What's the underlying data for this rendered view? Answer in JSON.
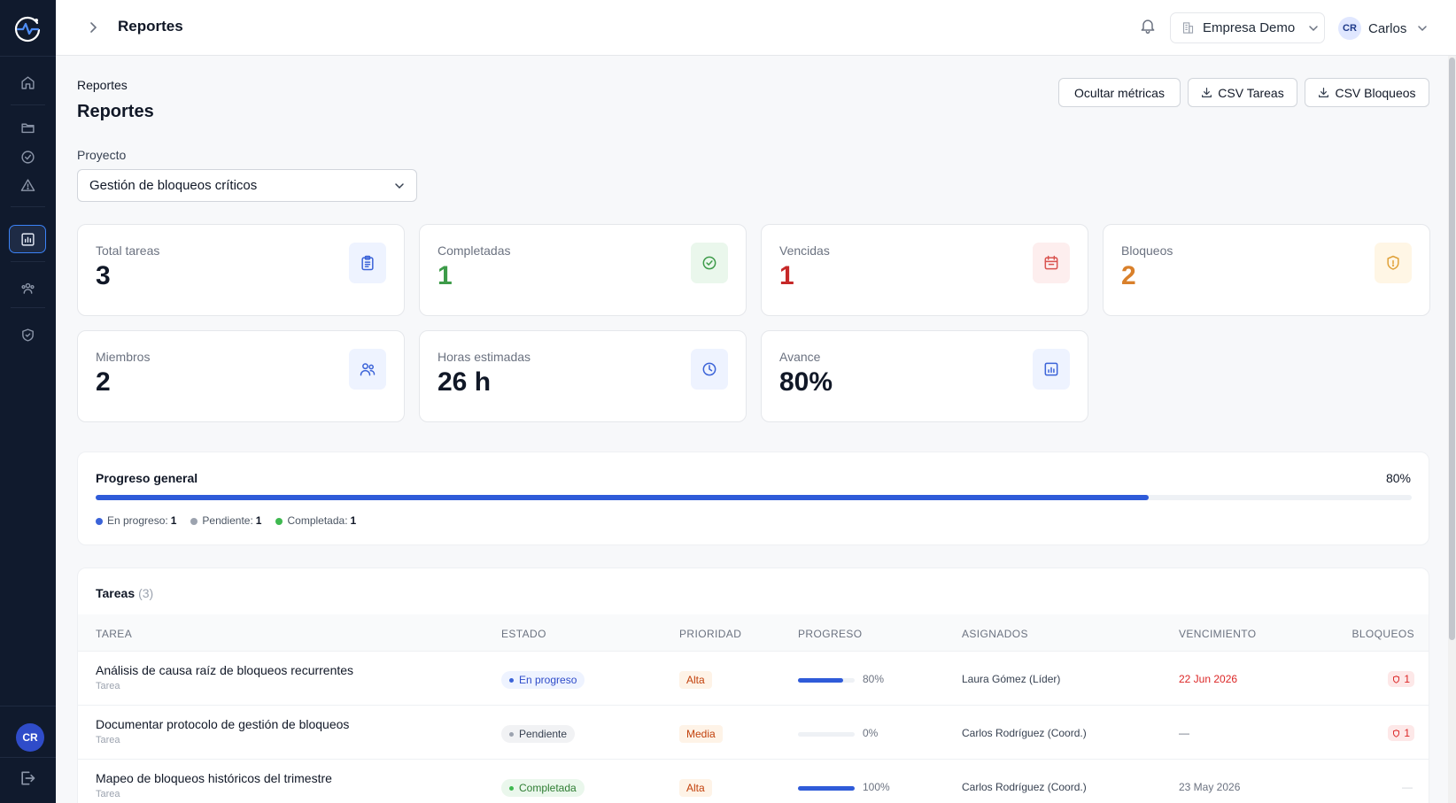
{
  "app": {
    "section_title": "Reportes",
    "company": "Empresa Demo",
    "user_initials": "CR",
    "user_name": "Carlos",
    "sidebar_avatar": "CR",
    "sidebar_icons": [
      "home-icon",
      "folder-icon",
      "check-circle-icon",
      "alert-triangle-icon",
      "bar-chart-icon",
      "users-icon",
      "shield-icon"
    ],
    "active_sidebar": "bar-chart-icon"
  },
  "page": {
    "breadcrumb": "Reportes",
    "title": "Reportes",
    "buttons": {
      "hide_metrics": "Ocultar métricas",
      "csv_tasks": "CSV Tareas",
      "csv_blocks": "CSV Bloqueos"
    },
    "project_label": "Proyecto",
    "project_value": "Gestión de bloqueos críticos"
  },
  "metrics": [
    {
      "label": "Total tareas",
      "value": "3",
      "icon": "clipboard-icon",
      "color": "#111827",
      "icon_bg": "#eef3ff",
      "icon_color": "#3b63d8"
    },
    {
      "label": "Completadas",
      "value": "1",
      "icon": "check-circle-icon",
      "color": "#3d9b49",
      "icon_bg": "#eaf7ec",
      "icon_color": "#3d9b49"
    },
    {
      "label": "Vencidas",
      "value": "1",
      "icon": "calendar-icon",
      "color": "#c62828",
      "icon_bg": "#fdeeee",
      "icon_color": "#d9534f"
    },
    {
      "label": "Bloqueos",
      "value": "2",
      "icon": "shield-alert-icon",
      "color": "#d9802b",
      "icon_bg": "#fff6e5",
      "icon_color": "#e0a23a"
    },
    {
      "label": "Miembros",
      "value": "2",
      "icon": "users-icon",
      "color": "#111827",
      "icon_bg": "#eef3ff",
      "icon_color": "#3b63d8"
    },
    {
      "label": "Horas estimadas",
      "value": "26 h",
      "icon": "clock-icon",
      "color": "#111827",
      "icon_bg": "#eef3ff",
      "icon_color": "#3b63d8"
    },
    {
      "label": "Avance",
      "value": "80%",
      "icon": "bar-chart-icon",
      "color": "#111827",
      "icon_bg": "#eef3ff",
      "icon_color": "#3b63d8"
    }
  ],
  "progress": {
    "title": "Progreso general",
    "percent_label": "80%",
    "fraction": 0.8,
    "legend": [
      {
        "label": "En progreso:",
        "count": "1",
        "color": "#3b63d8"
      },
      {
        "label": "Pendiente:",
        "count": "1",
        "color": "#9ca3af"
      },
      {
        "label": "Completada:",
        "count": "1",
        "color": "#3fb950"
      }
    ]
  },
  "tasks": {
    "title": "Tareas",
    "count": "(3)",
    "columns": [
      "TAREA",
      "ESTADO",
      "PRIORIDAD",
      "PROGRESO",
      "ASIGNADOS",
      "VENCIMIENTO",
      "BLOQUEOS"
    ],
    "rows": [
      {
        "name": "Análisis de causa raíz de bloqueos recurrentes",
        "type": "Tarea",
        "status": "En progreso",
        "status_kind": "progress",
        "priority": "Alta",
        "progress": 0.8,
        "progress_label": "80%",
        "assignees": "Laura Gómez (Líder)",
        "due": "22 Jun 2026",
        "overdue": true,
        "blocks": "1"
      },
      {
        "name": "Documentar protocolo de gestión de bloqueos",
        "type": "Tarea",
        "status": "Pendiente",
        "status_kind": "pending",
        "priority": "Media",
        "progress": 0,
        "progress_label": "0%",
        "assignees": "Carlos Rodríguez (Coord.)",
        "due": "—",
        "overdue": false,
        "blocks": "1"
      },
      {
        "name": "Mapeo de bloqueos históricos del trimestre",
        "type": "Tarea",
        "status": "Completada",
        "status_kind": "done",
        "priority": "Alta",
        "progress": 1,
        "progress_label": "100%",
        "assignees": "Carlos Rodríguez (Coord.)",
        "due": "23 May 2026",
        "overdue": false,
        "blocks": "—"
      }
    ]
  }
}
